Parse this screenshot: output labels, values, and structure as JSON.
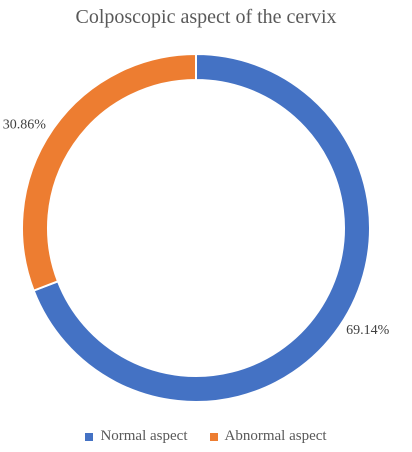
{
  "chart_data": {
    "type": "pie",
    "variant": "donut",
    "title": "Colposcopic aspect of the cervix",
    "slices": [
      {
        "label": "Normal aspect",
        "value": 69.14,
        "display": "69.14%",
        "color": "#4472C4"
      },
      {
        "label": "Abnormal aspect",
        "value": 30.86,
        "display": "30.86%",
        "color": "#ED7D31"
      }
    ],
    "legend_position": "bottom"
  }
}
